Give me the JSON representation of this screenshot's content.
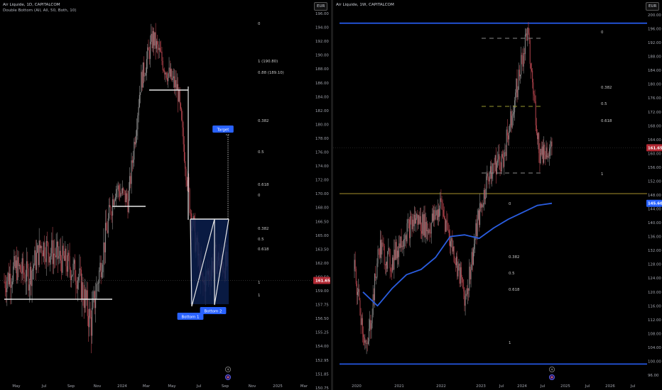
{
  "currency": "EUR",
  "colors": {
    "up": "#8a8a8a",
    "down": "#b2434c",
    "blue": "#2962ff",
    "ma": "#2a5de0",
    "olive": "#7a6a20",
    "white": "#e8e8e8",
    "price_tag": "#b22833",
    "blue_tag": "#2962ff"
  },
  "chart_data": [
    {
      "type": "candlestick",
      "header_line1": "Air Liquide, 1D, CAPITALCOM",
      "header_line2": "Double Bottom (All, All, 50, Both, 10)",
      "y_ticks": [
        "196.00",
        "194.00",
        "192.00",
        "190.00",
        "188.00",
        "186.00",
        "184.00",
        "182.00",
        "180.00",
        "178.00",
        "176.00",
        "174.00",
        "172.00",
        "170.00",
        "168.00",
        "166.50",
        "165.00",
        "163.50",
        "162.00",
        "160.50",
        "159.00",
        "157.75",
        "156.50",
        "155.25",
        "154.00",
        "152.95",
        "151.85",
        "150.75"
      ],
      "x_ticks": [
        "May",
        "Jul",
        "Sep",
        "Nov",
        "2024",
        "Mar",
        "May",
        "Jul",
        "Sep",
        "Nov",
        "2025",
        "Mar"
      ],
      "current_price": "161.65",
      "support_levels": [
        {
          "from": "Mar",
          "to": "Oct",
          "value": 160.2
        },
        {
          "from": "Nov",
          "to": "Jan",
          "value": 170.6
        },
        {
          "from": "Feb",
          "to": "Jun",
          "value": 187.3
        }
      ],
      "fib_levels_upper": [
        {
          "label": "0"
        },
        {
          "label": "1 (190.80)"
        },
        {
          "label": "0.88 (189.10)"
        },
        {
          "label": "0.382"
        },
        {
          "label": "0.5"
        },
        {
          "label": "0.618"
        }
      ],
      "fib_levels_lower": [
        {
          "label": "0"
        },
        {
          "label": "0.382"
        },
        {
          "label": "0.5"
        },
        {
          "label": "0.618"
        },
        {
          "label": "1"
        },
        {
          "label": "1"
        }
      ],
      "pattern_labels": [
        "Target",
        "Bottom 1",
        "Bottom 2"
      ],
      "neckline": 169.3,
      "bottom_1": 158.2,
      "bottom_2": 158.7,
      "target": 180.8,
      "candles_approx": [
        [
          "2023-03",
          160.0
        ],
        [
          "2023-04",
          161.5
        ],
        [
          "2023-05",
          160.5
        ],
        [
          "2023-06",
          164.0
        ],
        [
          "2023-07",
          163.0
        ],
        [
          "2023-08",
          162.0
        ],
        [
          "2023-09",
          160.5
        ],
        [
          "2023-10",
          156.0
        ],
        [
          "2023-11",
          163.5
        ],
        [
          "2023-12",
          171.0
        ],
        [
          "2024-01",
          169.0
        ],
        [
          "2024-02",
          186.0
        ],
        [
          "2024-03",
          192.5
        ],
        [
          "2024-04",
          188.0
        ],
        [
          "2024-05",
          185.0
        ],
        [
          "2024-06",
          168.0
        ],
        [
          "2024-07",
          159.5
        ],
        [
          "2024-08",
          162.5
        ],
        [
          "2024-09",
          161.65
        ]
      ]
    },
    {
      "type": "candlestick",
      "header_line1": "Air Liquide, 1W, CAPITALCOM",
      "y_ticks": [
        "200.00",
        "196.00",
        "192.00",
        "188.00",
        "184.00",
        "180.00",
        "176.00",
        "172.00",
        "168.00",
        "164.00",
        "160.00",
        "156.00",
        "152.00",
        "148.00",
        "144.00",
        "140.00",
        "136.00",
        "132.00",
        "128.00",
        "124.00",
        "120.00",
        "116.00",
        "112.00",
        "108.00",
        "104.00",
        "100.00",
        "96.00"
      ],
      "x_ticks": [
        "2020",
        "2021",
        "2022",
        "2023",
        "Jul",
        "2024",
        "Jul",
        "2025",
        "Jul",
        "2026",
        "Jul"
      ],
      "current_price": "161.65",
      "ma_price": "145.60",
      "channel_top": 197.6,
      "channel_bottom": 99.2,
      "olive_line": 148.4,
      "fib_levels_upper": [
        {
          "label": "0"
        },
        {
          "label": "0.382"
        },
        {
          "label": "0.5"
        },
        {
          "label": "0.618"
        },
        {
          "label": "1"
        }
      ],
      "fib_levels_lower": [
        {
          "label": "0"
        },
        {
          "label": "0.382"
        },
        {
          "label": "0.5"
        },
        {
          "label": "0.618"
        },
        {
          "label": "1"
        }
      ],
      "candles_approx": [
        [
          "2020-01",
          126.0
        ],
        [
          "2020-03",
          102.0
        ],
        [
          "2020-06",
          133.0
        ],
        [
          "2020-10",
          128.0
        ],
        [
          "2021-01",
          137.0
        ],
        [
          "2021-06",
          141.0
        ],
        [
          "2021-10",
          138.0
        ],
        [
          "2022-01",
          145.0
        ],
        [
          "2022-06",
          132.0
        ],
        [
          "2022-10",
          118.0
        ],
        [
          "2023-01",
          140.0
        ],
        [
          "2023-06",
          156.0
        ],
        [
          "2023-10",
          158.0
        ],
        [
          "2024-01",
          176.0
        ],
        [
          "2024-03",
          195.0
        ],
        [
          "2024-06",
          160.0
        ],
        [
          "2024-09",
          161.65
        ]
      ],
      "ma_points": [
        [
          "2020-01",
          120.0
        ],
        [
          "2020-03",
          116.0
        ],
        [
          "2020-06",
          121.0
        ],
        [
          "2021-01",
          125.0
        ],
        [
          "2021-06",
          126.5
        ],
        [
          "2022-01",
          130.0
        ],
        [
          "2022-06",
          136.0
        ],
        [
          "2022-10",
          136.5
        ],
        [
          "2023-01",
          135.5
        ],
        [
          "2023-06",
          138.5
        ],
        [
          "2023-10",
          141.0
        ],
        [
          "2024-01",
          143.0
        ],
        [
          "2024-06",
          145.0
        ],
        [
          "2024-09",
          145.6
        ]
      ]
    }
  ],
  "footer_icons": [
    "lightning-icon",
    "flag-icon"
  ]
}
